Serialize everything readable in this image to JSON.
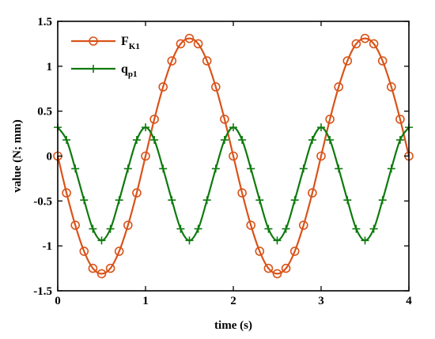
{
  "chart_data": {
    "type": "line",
    "xlabel": "time (s)",
    "ylabel": "value (N; mm)",
    "xlim": [
      0,
      4
    ],
    "ylim": [
      -1.5,
      1.5
    ],
    "xticks": [
      "0",
      "1",
      "2",
      "3",
      "4"
    ],
    "yticks": [
      "-1.5",
      "-1",
      "-0.5",
      "0",
      "0.5",
      "1",
      "1.5"
    ],
    "grid": false,
    "legend_position": "top-left",
    "series": [
      {
        "name": "F",
        "name_subscript": "K1",
        "color": "#D95319",
        "marker": "circle",
        "x": [
          0,
          0.1,
          0.2,
          0.3,
          0.4,
          0.5,
          0.6,
          0.7,
          0.8,
          0.9,
          1.0,
          1.1,
          1.2,
          1.3,
          1.4,
          1.5,
          1.6,
          1.7,
          1.8,
          1.9,
          2.0,
          2.1,
          2.2,
          2.3,
          2.4,
          2.5,
          2.6,
          2.7,
          2.8,
          2.9,
          3.0,
          3.1,
          3.2,
          3.3,
          3.4,
          3.5,
          3.6,
          3.7,
          3.8,
          3.9,
          4.0
        ],
        "y": [
          0,
          -0.41,
          -0.77,
          -1.06,
          -1.25,
          -1.31,
          -1.25,
          -1.06,
          -0.77,
          -0.41,
          0,
          0.41,
          0.77,
          1.06,
          1.25,
          1.31,
          1.25,
          1.06,
          0.77,
          0.41,
          0,
          -0.41,
          -0.77,
          -1.06,
          -1.25,
          -1.31,
          -1.25,
          -1.06,
          -0.77,
          -0.41,
          0,
          0.41,
          0.77,
          1.06,
          1.25,
          1.31,
          1.25,
          1.06,
          0.77,
          0.41,
          0
        ]
      },
      {
        "name": "q",
        "name_subscript": "p1",
        "color": "#0E7A0E",
        "marker": "plus",
        "x": [
          0,
          0.1,
          0.2,
          0.3,
          0.4,
          0.5,
          0.6,
          0.7,
          0.8,
          0.9,
          1.0,
          1.1,
          1.2,
          1.3,
          1.4,
          1.5,
          1.6,
          1.7,
          1.8,
          1.9,
          2.0,
          2.1,
          2.2,
          2.3,
          2.4,
          2.5,
          2.6,
          2.7,
          2.8,
          2.9,
          3.0,
          3.1,
          3.2,
          3.3,
          3.4,
          3.5,
          3.6,
          3.7,
          3.8,
          3.9,
          4.0
        ],
        "y": [
          0.32,
          0.18,
          -0.14,
          -0.49,
          -0.81,
          -0.94,
          -0.81,
          -0.49,
          -0.14,
          0.18,
          0.32,
          0.18,
          -0.14,
          -0.49,
          -0.81,
          -0.94,
          -0.81,
          -0.49,
          -0.14,
          0.18,
          0.32,
          0.18,
          -0.14,
          -0.49,
          -0.81,
          -0.94,
          -0.81,
          -0.49,
          -0.14,
          0.18,
          0.32,
          0.18,
          -0.14,
          -0.49,
          -0.81,
          -0.94,
          -0.81,
          -0.49,
          -0.14,
          0.18,
          0.32
        ]
      }
    ]
  }
}
